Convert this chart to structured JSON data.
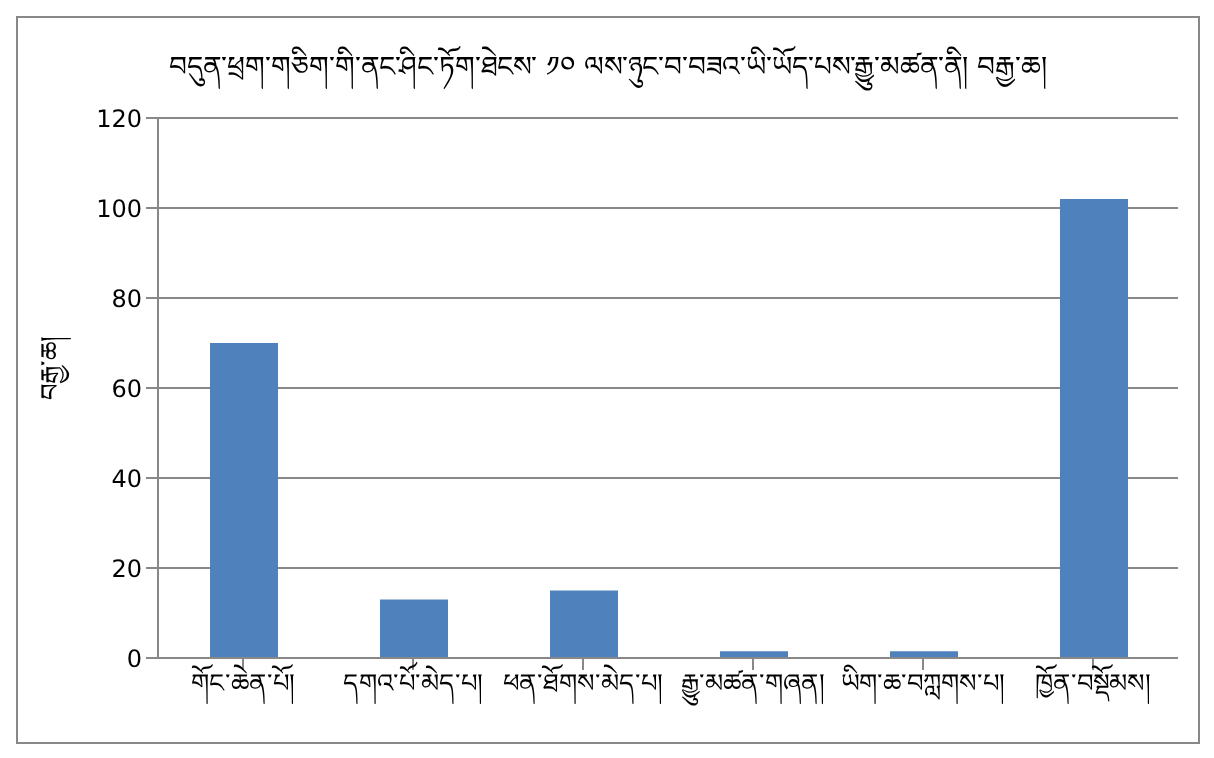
{
  "chart_data": {
    "type": "bar",
    "title": "བདུན་ཕྲག་གཅིག་གི་ནང་ཤིང་ཏོག་ཐེངས་ ༡༠ ལས་ཉུང་བ་བཟའ་ཡི་ཡོད་པས་རྒྱུ་མཚན་ནི། བརྒྱ་ཆ།",
    "ylabel": "བརྒྱ་ཆ།",
    "categories": [
      "གོང་ཆེན་པོ།",
      "དགའ་པོ་མེད་པ།",
      "ཕན་ཐོགས་མེད་པ།",
      "རྒྱུ་མཚན་གཞན།",
      "ཡིག་ཆ་བཀླགས་པ།",
      "ཁྱོན་བསྡོམས།"
    ],
    "values": [
      70,
      13,
      15,
      1.5,
      1.5,
      102
    ],
    "color": "#4f81bd",
    "ylim": [
      0,
      120
    ],
    "yticks": [
      0,
      20,
      40,
      60,
      80,
      100,
      120
    ],
    "grid": "y"
  }
}
